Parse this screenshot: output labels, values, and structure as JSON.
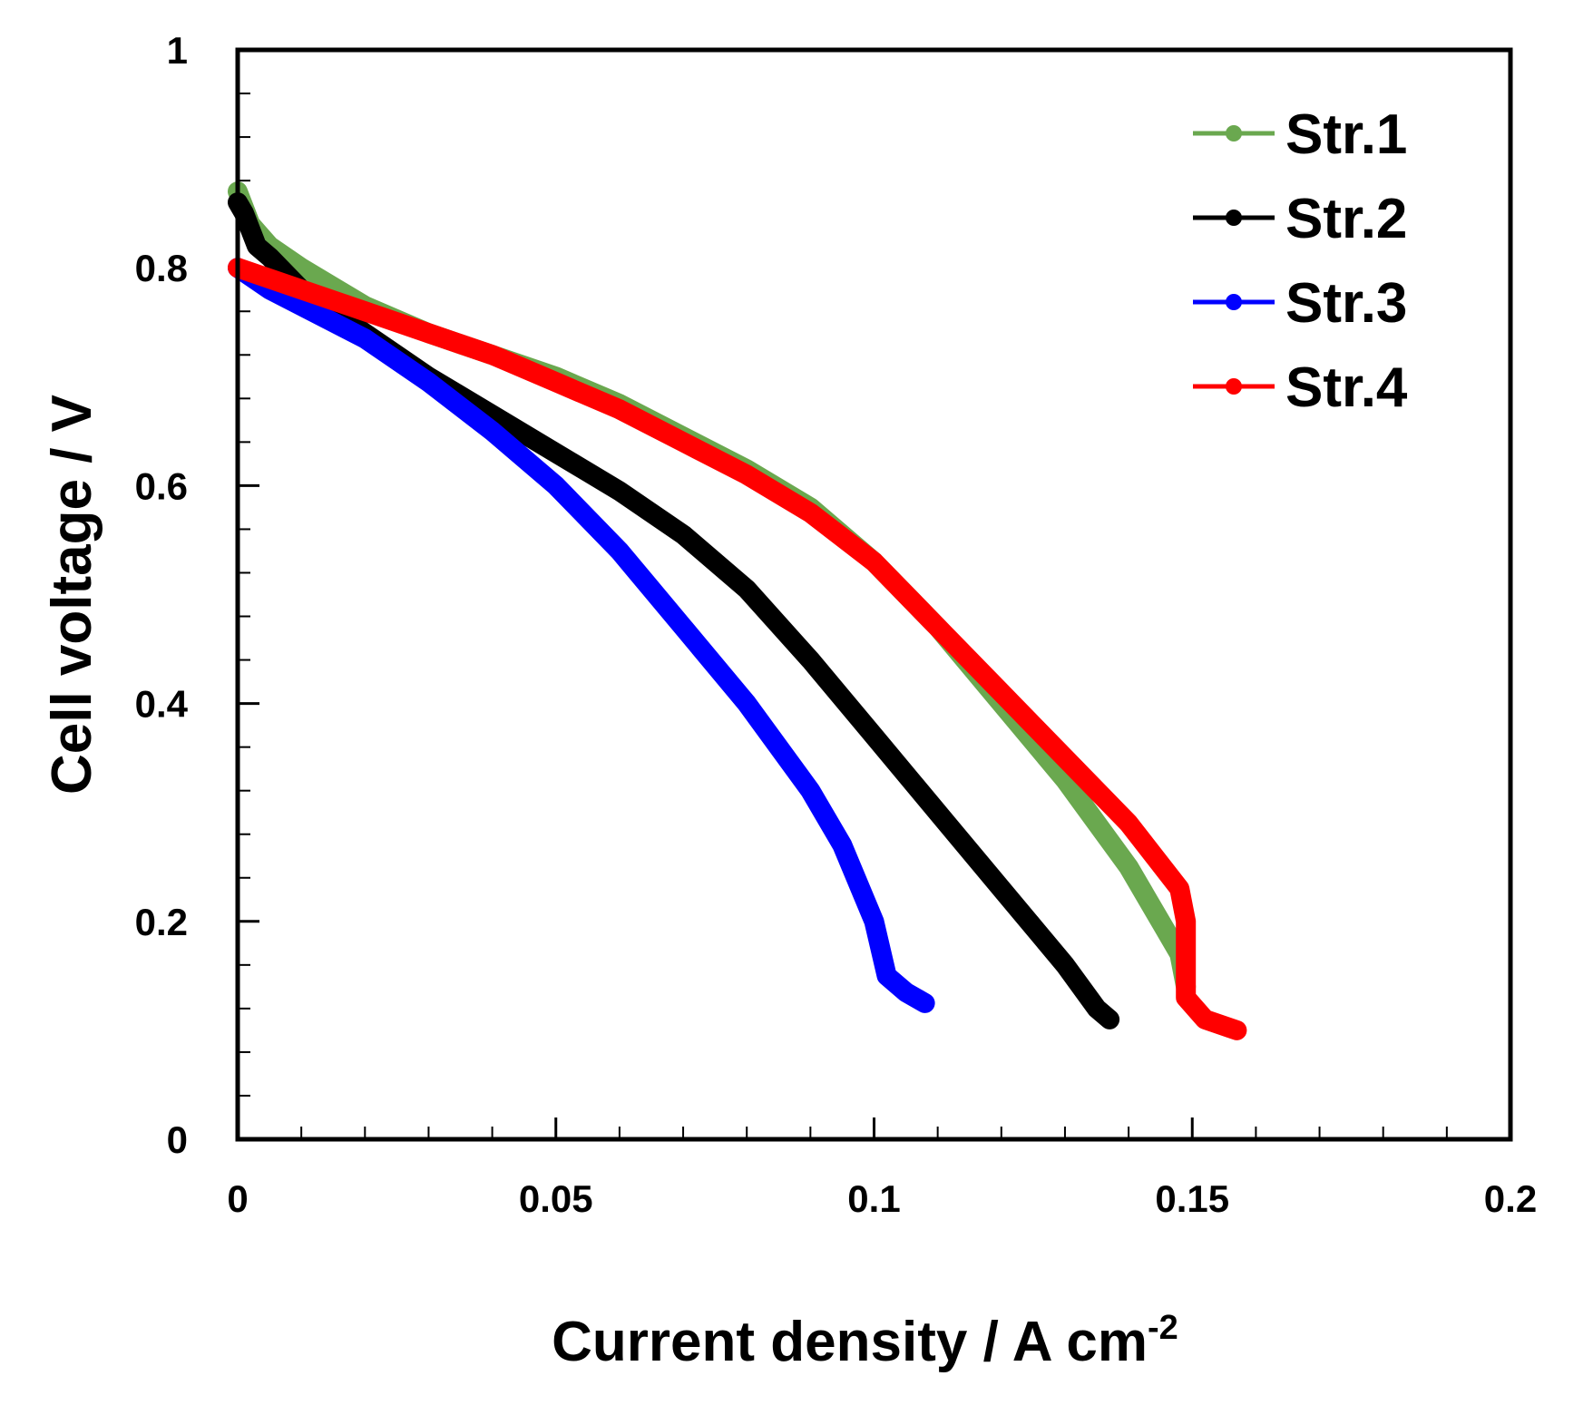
{
  "chart_data": {
    "type": "line",
    "title": "",
    "xlabel": "Current density / A cm",
    "xlabel_superscript": "-2",
    "ylabel": "Cell voltage / V",
    "xlim": [
      0,
      0.2
    ],
    "ylim": [
      0,
      1
    ],
    "x_ticks": [
      0,
      0.05,
      0.1,
      0.15,
      0.2
    ],
    "x_tick_labels": [
      "0",
      "0.05",
      "0.1",
      "0.15",
      "0.2"
    ],
    "y_ticks": [
      0,
      0.2,
      0.4,
      0.6,
      0.8,
      1
    ],
    "y_tick_labels": [
      "0",
      "0.2",
      "0.4",
      "0.6",
      "0.8",
      "1"
    ],
    "x_minor_step": 0.01,
    "y_minor_step": 0.04,
    "grid": false,
    "legend_position": "top-right",
    "series": [
      {
        "name": "Str.1",
        "color": "#6aa84f",
        "x": [
          0,
          0.002,
          0.005,
          0.01,
          0.02,
          0.03,
          0.04,
          0.05,
          0.06,
          0.07,
          0.08,
          0.09,
          0.1,
          0.11,
          0.12,
          0.13,
          0.14,
          0.148,
          0.149
        ],
        "y": [
          0.87,
          0.84,
          0.82,
          0.8,
          0.765,
          0.74,
          0.72,
          0.7,
          0.675,
          0.645,
          0.615,
          0.58,
          0.53,
          0.47,
          0.4,
          0.33,
          0.25,
          0.17,
          0.14
        ]
      },
      {
        "name": "Str.2",
        "color": "#000000",
        "x": [
          0,
          0.001,
          0.003,
          0.005,
          0.01,
          0.02,
          0.03,
          0.04,
          0.05,
          0.06,
          0.07,
          0.08,
          0.09,
          0.1,
          0.11,
          0.12,
          0.13,
          0.135,
          0.137
        ],
        "y": [
          0.86,
          0.85,
          0.82,
          0.81,
          0.78,
          0.74,
          0.7,
          0.665,
          0.63,
          0.595,
          0.555,
          0.505,
          0.44,
          0.37,
          0.3,
          0.23,
          0.16,
          0.12,
          0.11
        ]
      },
      {
        "name": "Str.3",
        "color": "#0000ff",
        "x": [
          0,
          0.005,
          0.01,
          0.02,
          0.03,
          0.04,
          0.05,
          0.06,
          0.07,
          0.08,
          0.09,
          0.095,
          0.1,
          0.102,
          0.105,
          0.108
        ],
        "y": [
          0.8,
          0.78,
          0.765,
          0.735,
          0.695,
          0.65,
          0.6,
          0.54,
          0.47,
          0.4,
          0.32,
          0.27,
          0.2,
          0.15,
          0.135,
          0.125
        ]
      },
      {
        "name": "Str.4",
        "color": "#ff0000",
        "x": [
          0,
          0.005,
          0.01,
          0.02,
          0.03,
          0.04,
          0.05,
          0.06,
          0.07,
          0.08,
          0.09,
          0.1,
          0.11,
          0.12,
          0.13,
          0.14,
          0.148,
          0.149,
          0.149,
          0.152,
          0.157
        ],
        "y": [
          0.8,
          0.79,
          0.78,
          0.76,
          0.74,
          0.72,
          0.695,
          0.67,
          0.64,
          0.61,
          0.575,
          0.53,
          0.47,
          0.41,
          0.35,
          0.29,
          0.23,
          0.2,
          0.13,
          0.11,
          0.1
        ]
      }
    ]
  }
}
